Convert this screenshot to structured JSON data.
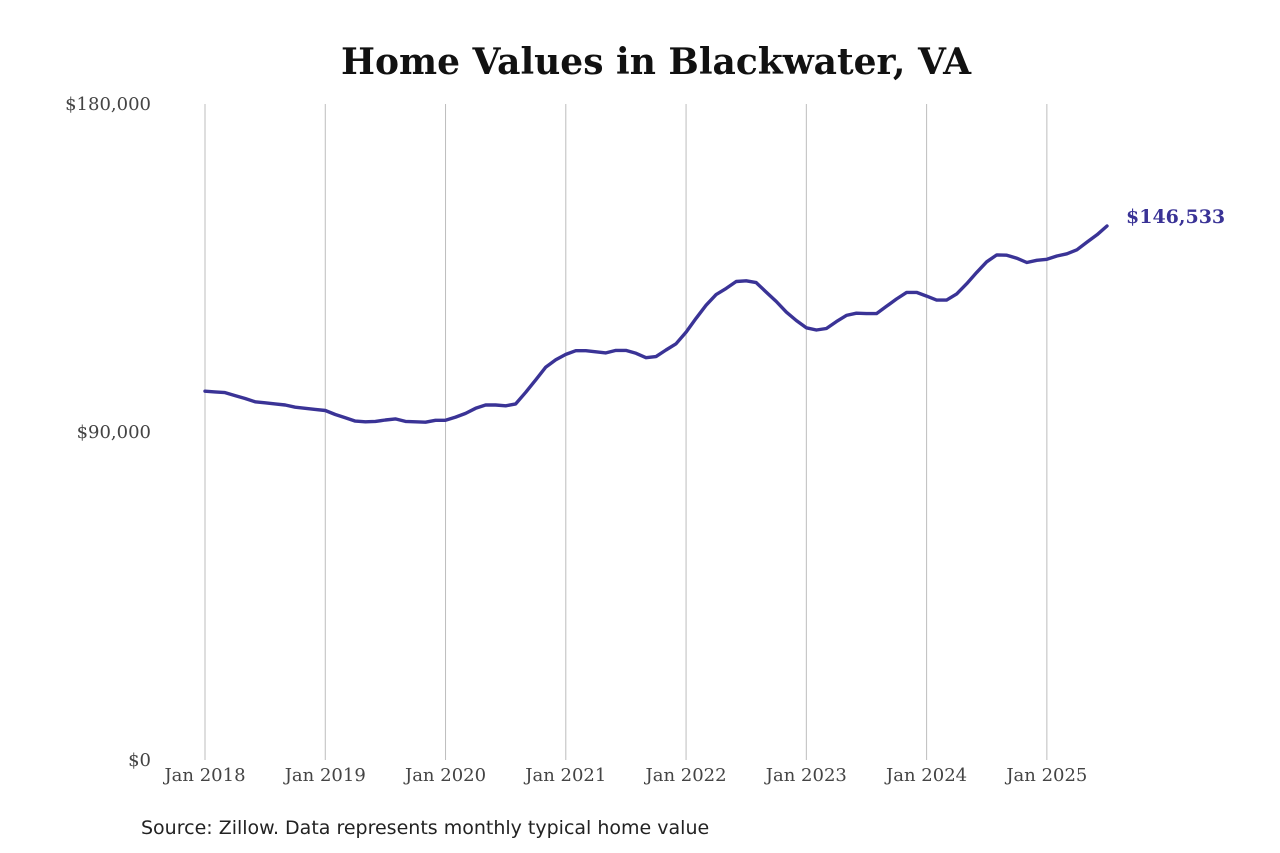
{
  "chart_data": {
    "type": "line",
    "title": "Home Values in Blackwater, VA",
    "xlabel": "",
    "ylabel": "",
    "x_ticks": [
      "Jan 2018",
      "Jan 2019",
      "Jan 2020",
      "Jan 2021",
      "Jan 2022",
      "Jan 2023",
      "Jan 2024",
      "Jan 2025"
    ],
    "y_ticks": [
      "$0",
      "$90,000",
      "$180,000"
    ],
    "ylim": [
      0,
      180000
    ],
    "xlim": [
      "2018-01",
      "2025-07"
    ],
    "grid": "vertical",
    "legend": "none",
    "end_label": "$146,533",
    "line_color": "#3a3396",
    "series": [
      {
        "x": [
          "2018-01",
          "2018-02",
          "2018-03",
          "2018-04",
          "2018-05",
          "2018-06",
          "2018-07",
          "2018-08",
          "2018-09",
          "2018-10",
          "2018-11",
          "2018-12",
          "2019-01",
          "2019-02",
          "2019-03",
          "2019-04",
          "2019-05",
          "2019-06",
          "2019-07",
          "2019-08",
          "2019-09",
          "2019-10",
          "2019-11",
          "2019-12",
          "2020-01",
          "2020-02",
          "2020-03",
          "2020-04",
          "2020-05",
          "2020-06",
          "2020-07",
          "2020-08",
          "2020-09",
          "2020-10",
          "2020-11",
          "2020-12",
          "2021-01",
          "2021-02",
          "2021-03",
          "2021-04",
          "2021-05",
          "2021-06",
          "2021-07",
          "2021-08",
          "2021-09",
          "2021-10",
          "2021-11",
          "2021-12",
          "2022-01",
          "2022-02",
          "2022-03",
          "2022-04",
          "2022-05",
          "2022-06",
          "2022-07",
          "2022-08",
          "2022-09",
          "2022-10",
          "2022-11",
          "2022-12",
          "2023-01",
          "2023-02",
          "2023-03",
          "2023-04",
          "2023-05",
          "2023-06",
          "2023-07",
          "2023-08",
          "2023-09",
          "2023-10",
          "2023-11",
          "2023-12",
          "2024-01",
          "2024-02",
          "2024-03",
          "2024-04",
          "2024-05",
          "2024-06",
          "2024-07",
          "2024-08",
          "2024-09",
          "2024-10",
          "2024-11",
          "2024-12",
          "2025-01",
          "2025-02",
          "2025-03",
          "2025-04",
          "2025-05",
          "2025-06",
          "2025-07"
        ],
        "values": [
          101200,
          101000,
          100800,
          100000,
          99200,
          98300,
          98000,
          97700,
          97400,
          96800,
          96500,
          96200,
          95900,
          94800,
          93900,
          93000,
          92800,
          92900,
          93300,
          93600,
          92900,
          92800,
          92700,
          93200,
          93200,
          94100,
          95100,
          96500,
          97400,
          97400,
          97200,
          97700,
          100900,
          104300,
          107800,
          109800,
          111300,
          112300,
          112300,
          112000,
          111700,
          112400,
          112400,
          111600,
          110400,
          110700,
          112500,
          114200,
          117400,
          121200,
          124800,
          127700,
          129400,
          131300,
          131500,
          131000,
          128400,
          125800,
          122900,
          120600,
          118600,
          118000,
          118400,
          120300,
          122000,
          122600,
          122500,
          122500,
          124500,
          126500,
          128300,
          128300,
          127300,
          126200,
          126200,
          127900,
          130700,
          133800,
          136700,
          138600,
          138500,
          137700,
          136500,
          137100,
          137400,
          138300,
          138900,
          140000,
          142100,
          144100,
          146533
        ]
      }
    ]
  },
  "footer": {
    "source": "Source: Zillow. Data represents monthly typical home value"
  }
}
